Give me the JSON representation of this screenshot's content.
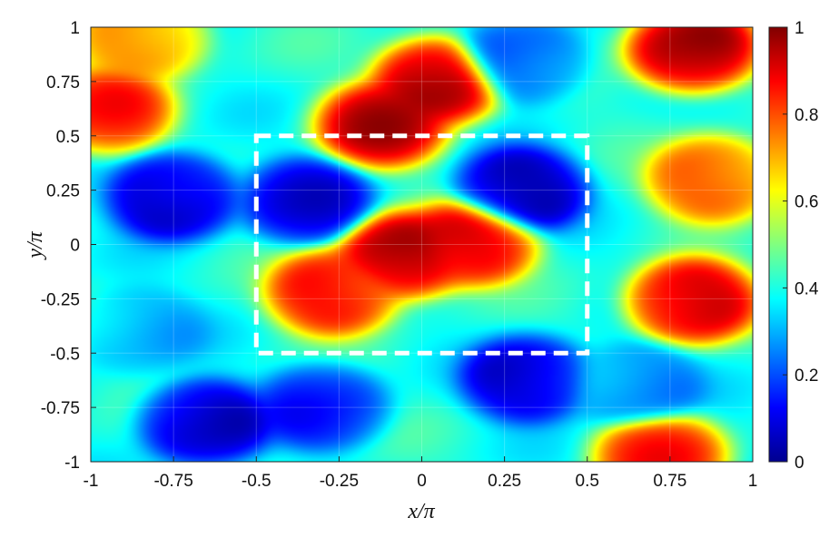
{
  "chart_data": {
    "type": "heatmap",
    "title": "",
    "xlabel": "x/π",
    "ylabel": "y/π",
    "xlim": [
      -1,
      1
    ],
    "ylim": [
      -1,
      1
    ],
    "xticks": [
      "-1",
      "-0.75",
      "-0.5",
      "-0.25",
      "0",
      "0.25",
      "0.5",
      "0.75",
      "1"
    ],
    "yticks": [
      "1",
      "0.75",
      "0.5",
      "0.25",
      "0",
      "-0.25",
      "-0.5",
      "-0.75",
      "-1"
    ],
    "colormap": "jet",
    "colorbar": {
      "range": [
        0,
        1
      ],
      "ticks": [
        "1",
        "0.8",
        "0.6",
        "0.4",
        "0.2",
        "0"
      ]
    },
    "highlight_box": {
      "x": [
        -0.5,
        0.5
      ],
      "y": [
        -0.5,
        0.5
      ],
      "style": "white dashed"
    },
    "field_features": [
      {
        "x": 0.05,
        "y": 0.75,
        "value": 1.0
      },
      {
        "x": -0.12,
        "y": 0.55,
        "value": 0.95
      },
      {
        "x": 0.82,
        "y": 0.9,
        "value": 1.0
      },
      {
        "x": -0.06,
        "y": -0.05,
        "value": 1.0
      },
      {
        "x": -0.27,
        "y": -0.22,
        "value": 0.88
      },
      {
        "x": 0.15,
        "y": 0.01,
        "value": 0.9
      },
      {
        "x": 0.82,
        "y": -0.26,
        "value": 0.95
      },
      {
        "x": -0.95,
        "y": 0.62,
        "value": 0.85
      },
      {
        "x": -0.85,
        "y": 0.95,
        "value": 0.75
      },
      {
        "x": 0.88,
        "y": 0.3,
        "value": 0.8
      },
      {
        "x": -0.75,
        "y": 0.22,
        "value": 0.05
      },
      {
        "x": -0.35,
        "y": 0.2,
        "value": 0.1
      },
      {
        "x": 0.3,
        "y": 0.25,
        "value": 0.05
      },
      {
        "x": 0.32,
        "y": -0.62,
        "value": 0.08
      },
      {
        "x": -0.65,
        "y": -0.82,
        "value": 0.05
      },
      {
        "x": 0.3,
        "y": 0.85,
        "value": 0.2
      },
      {
        "x": -0.3,
        "y": -0.75,
        "value": 0.15
      },
      {
        "x": 0.65,
        "y": -0.65,
        "value": 0.25
      },
      {
        "x": -0.85,
        "y": -0.4,
        "value": 0.3
      },
      {
        "x": 0.72,
        "y": -0.97,
        "value": 0.85
      }
    ]
  }
}
